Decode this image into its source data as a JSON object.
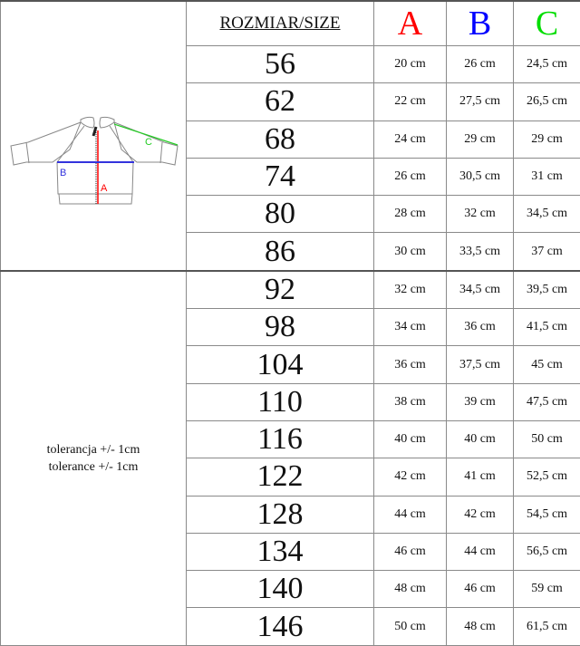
{
  "header": {
    "size_label": "ROZMIAR/SIZE",
    "columns": [
      {
        "label": "A",
        "color": "#ff0000"
      },
      {
        "label": "B",
        "color": "#0000ff"
      },
      {
        "label": "C",
        "color": "#00dd00"
      }
    ]
  },
  "diagram": {
    "labels": {
      "a": "A",
      "b": "B",
      "c": "C"
    }
  },
  "tolerance": {
    "line1": "tolerancja +/- 1cm",
    "line2": "tolerance +/- 1cm"
  },
  "rows": [
    {
      "size": "56",
      "a": "20 cm",
      "b": "26 cm",
      "c": "24,5 cm"
    },
    {
      "size": "62",
      "a": "22 cm",
      "b": "27,5 cm",
      "c": "26,5 cm"
    },
    {
      "size": "68",
      "a": "24 cm",
      "b": "29 cm",
      "c": "29 cm"
    },
    {
      "size": "74",
      "a": "26 cm",
      "b": "30,5 cm",
      "c": "31 cm"
    },
    {
      "size": "80",
      "a": "28 cm",
      "b": "32 cm",
      "c": "34,5 cm"
    },
    {
      "size": "86",
      "a": "30 cm",
      "b": "33,5 cm",
      "c": "37 cm"
    },
    {
      "size": "92",
      "a": "32 cm",
      "b": "34,5 cm",
      "c": "39,5 cm"
    },
    {
      "size": "98",
      "a": "34 cm",
      "b": "36 cm",
      "c": "41,5 cm"
    },
    {
      "size": "104",
      "a": "36 cm",
      "b": "37,5 cm",
      "c": "45 cm"
    },
    {
      "size": "110",
      "a": "38 cm",
      "b": "39 cm",
      "c": "47,5 cm"
    },
    {
      "size": "116",
      "a": "40 cm",
      "b": "40 cm",
      "c": "50 cm"
    },
    {
      "size": "122",
      "a": "42 cm",
      "b": "41 cm",
      "c": "52,5 cm"
    },
    {
      "size": "128",
      "a": "44 cm",
      "b": "42 cm",
      "c": "54,5 cm"
    },
    {
      "size": "134",
      "a": "46 cm",
      "b": "44 cm",
      "c": "56,5 cm"
    },
    {
      "size": "140",
      "a": "48 cm",
      "b": "46 cm",
      "c": "59 cm"
    },
    {
      "size": "146",
      "a": "50 cm",
      "b": "48 cm",
      "c": "61,5 cm"
    }
  ]
}
